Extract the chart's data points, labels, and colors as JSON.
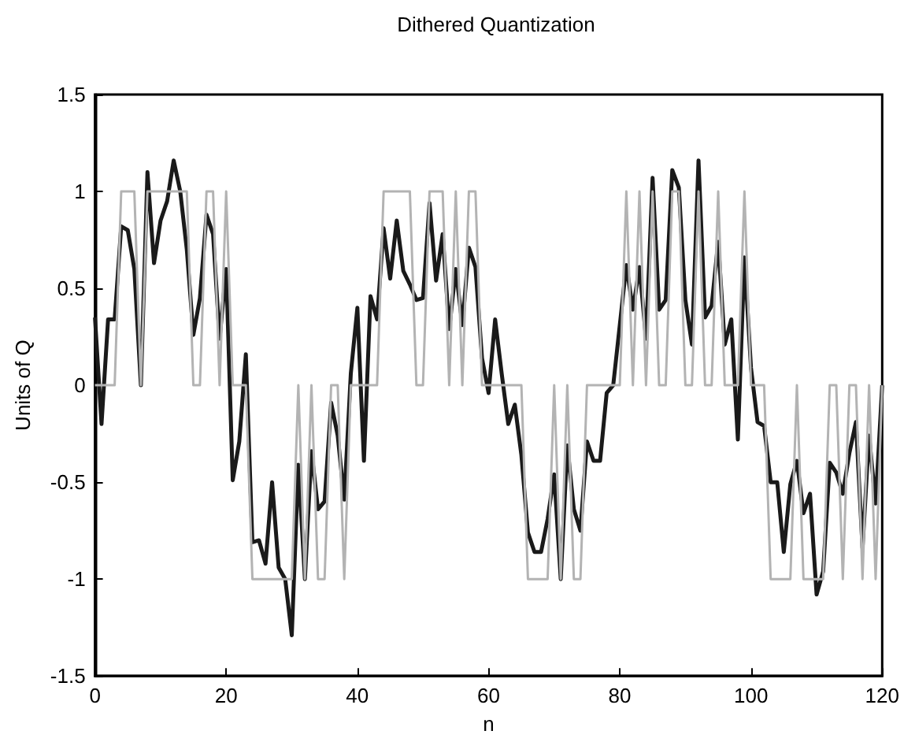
{
  "chart_data": {
    "type": "line",
    "title": "Dithered Quantization",
    "xlabel": "n",
    "ylabel": "Units of Q",
    "x": [
      0,
      1,
      2,
      3,
      4,
      5,
      6,
      7,
      8,
      9,
      10,
      11,
      12,
      13,
      14,
      15,
      16,
      17,
      18,
      19,
      20,
      21,
      22,
      23,
      24,
      25,
      26,
      27,
      28,
      29,
      30,
      31,
      32,
      33,
      34,
      35,
      36,
      37,
      38,
      39,
      40,
      41,
      42,
      43,
      44,
      45,
      46,
      47,
      48,
      49,
      50,
      51,
      52,
      53,
      54,
      55,
      56,
      57,
      58,
      59,
      60,
      61,
      62,
      63,
      64,
      65,
      66,
      67,
      68,
      69,
      70,
      71,
      72,
      73,
      74,
      75,
      76,
      77,
      78,
      79,
      80,
      81,
      82,
      83,
      84,
      85,
      86,
      87,
      88,
      89,
      90,
      91,
      92,
      93,
      94,
      95,
      96,
      97,
      98,
      99,
      100,
      101,
      102,
      103,
      104,
      105,
      106,
      107,
      108,
      109,
      110,
      111,
      112,
      113,
      114,
      115,
      116,
      117,
      118,
      119,
      120
    ],
    "series": [
      {
        "color": "#1a1a1a",
        "values": [
          0.35,
          -0.2,
          0.34,
          0.34,
          0.82,
          0.8,
          0.6,
          0.0,
          1.1,
          0.63,
          0.85,
          0.95,
          1.16,
          1.0,
          0.7,
          0.26,
          0.45,
          0.88,
          0.78,
          0.24,
          0.6,
          -0.49,
          -0.29,
          0.16,
          -0.81,
          -0.8,
          -0.92,
          -0.5,
          -0.94,
          -1.0,
          -1.29,
          -0.41,
          -1.0,
          -0.34,
          -0.64,
          -0.6,
          -0.09,
          -0.26,
          -0.59,
          0.06,
          0.4,
          -0.39,
          0.46,
          0.34,
          0.81,
          0.55,
          0.85,
          0.59,
          0.52,
          0.44,
          0.45,
          0.94,
          0.54,
          0.78,
          0.29,
          0.6,
          0.31,
          0.71,
          0.61,
          0.14,
          -0.04,
          0.34,
          0.06,
          -0.2,
          -0.1,
          -0.36,
          -0.76,
          -0.86,
          -0.86,
          -0.69,
          -0.46,
          -1.0,
          -0.31,
          -0.64,
          -0.75,
          -0.29,
          -0.39,
          -0.39,
          -0.04,
          0.0,
          0.31,
          0.62,
          0.39,
          0.61,
          0.24,
          1.07,
          0.39,
          0.44,
          1.11,
          1.02,
          0.44,
          0.21,
          1.16,
          0.35,
          0.41,
          0.74,
          0.21,
          0.34,
          -0.28,
          0.66,
          0.09,
          -0.19,
          -0.21,
          -0.5,
          -0.5,
          -0.86,
          -0.51,
          -0.39,
          -0.66,
          -0.56,
          -1.08,
          -0.96,
          -0.4,
          -0.45,
          -0.56,
          -0.35,
          -0.19,
          -0.84,
          -0.26,
          -0.61,
          0.0
        ]
      },
      {
        "color": "#b3b3b3",
        "values": [
          0,
          0,
          0,
          0,
          1,
          1,
          1,
          0,
          1,
          1,
          1,
          1,
          1,
          1,
          1,
          0,
          0,
          1,
          1,
          0,
          1,
          0,
          0,
          0,
          -1,
          -1,
          -1,
          -1,
          -1,
          -1,
          -1,
          0,
          -1,
          0,
          -1,
          -1,
          0,
          0,
          -1,
          0,
          0,
          0,
          0,
          0,
          1,
          1,
          1,
          1,
          1,
          0,
          0,
          1,
          1,
          1,
          0,
          1,
          0,
          1,
          1,
          0,
          0,
          0,
          0,
          0,
          0,
          0,
          -1,
          -1,
          -1,
          -1,
          0,
          -1,
          0,
          -1,
          -1,
          0,
          0,
          0,
          0,
          0,
          0,
          1,
          0,
          1,
          0,
          1,
          0,
          0,
          1,
          1,
          0,
          0,
          1,
          0,
          0,
          1,
          0,
          0,
          0,
          1,
          0,
          0,
          0,
          -1,
          -1,
          -1,
          -1,
          0,
          -1,
          -1,
          -1,
          -1,
          0,
          0,
          -1,
          0,
          0,
          -1,
          0,
          -1,
          0
        ]
      }
    ],
    "xlim": [
      0,
      120
    ],
    "xticks": [
      0,
      20,
      40,
      60,
      80,
      100,
      120
    ],
    "ylim": [
      -1.5,
      1.5
    ],
    "yticks": [
      -1.5,
      -1,
      -0.5,
      0,
      0.5,
      1,
      1.5
    ],
    "grid": false,
    "marker": "none",
    "line_style": "solid"
  }
}
